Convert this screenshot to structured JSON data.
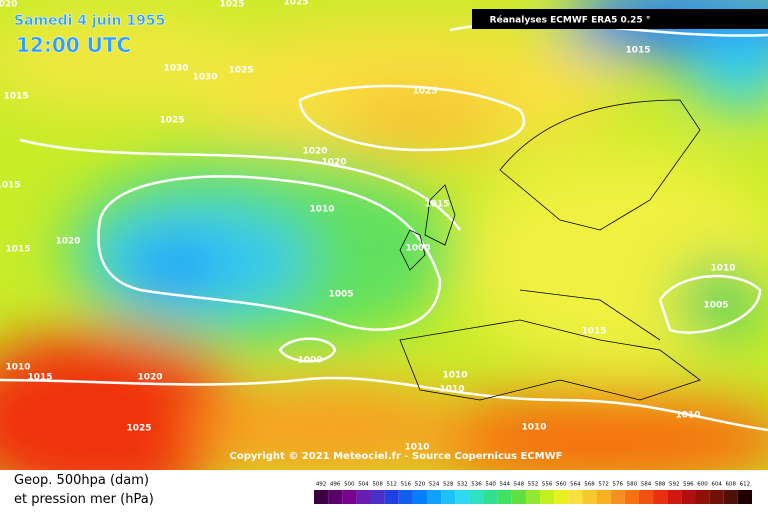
{
  "header": {
    "date": "Samedi 4 juin 1955",
    "time": "12:00 UTC",
    "source": "Réanalyses ECMWF ERA5 0.25 °"
  },
  "copyright": "Copyright © 2021 Meteociel.fr - Source Copernicus ECMWF",
  "legend": {
    "line1": "Geop. 500hpa (dam)",
    "line2": "et pression mer (hPa)"
  },
  "colorbar": {
    "ticks": [
      492,
      496,
      500,
      504,
      508,
      512,
      516,
      520,
      524,
      528,
      532,
      536,
      540,
      544,
      548,
      552,
      556,
      560,
      564,
      568,
      572,
      576,
      580,
      584,
      588,
      592,
      596,
      600,
      604,
      608,
      612
    ],
    "colors": [
      "#3a0040",
      "#5a0068",
      "#7a0090",
      "#6a1cb0",
      "#4a30c8",
      "#2040e0",
      "#1060f0",
      "#0080ff",
      "#10a0ff",
      "#20c0ff",
      "#30d8f0",
      "#30e0c0",
      "#30e090",
      "#40e060",
      "#60e040",
      "#90e830",
      "#c0f020",
      "#e8f020",
      "#f8e040",
      "#f8c830",
      "#f8b020",
      "#f89020",
      "#f87010",
      "#f05010",
      "#e83010",
      "#d01810",
      "#b01010",
      "#901008",
      "#701008",
      "#501008",
      "#200000"
    ]
  },
  "isobar_labels": [
    "020",
    "1025",
    "1025",
    "1015",
    "1030",
    "1030",
    "1025",
    "1025",
    "1015",
    "1025",
    "1020",
    "1020",
    "1015",
    "1010",
    "1015",
    "1020",
    "1015",
    "1000",
    "1010",
    "1005",
    "1005",
    "1015",
    "1000",
    "1010",
    "1015",
    "1010",
    "1010",
    "1020",
    "1025",
    "1010",
    "1010",
    "1010"
  ]
}
